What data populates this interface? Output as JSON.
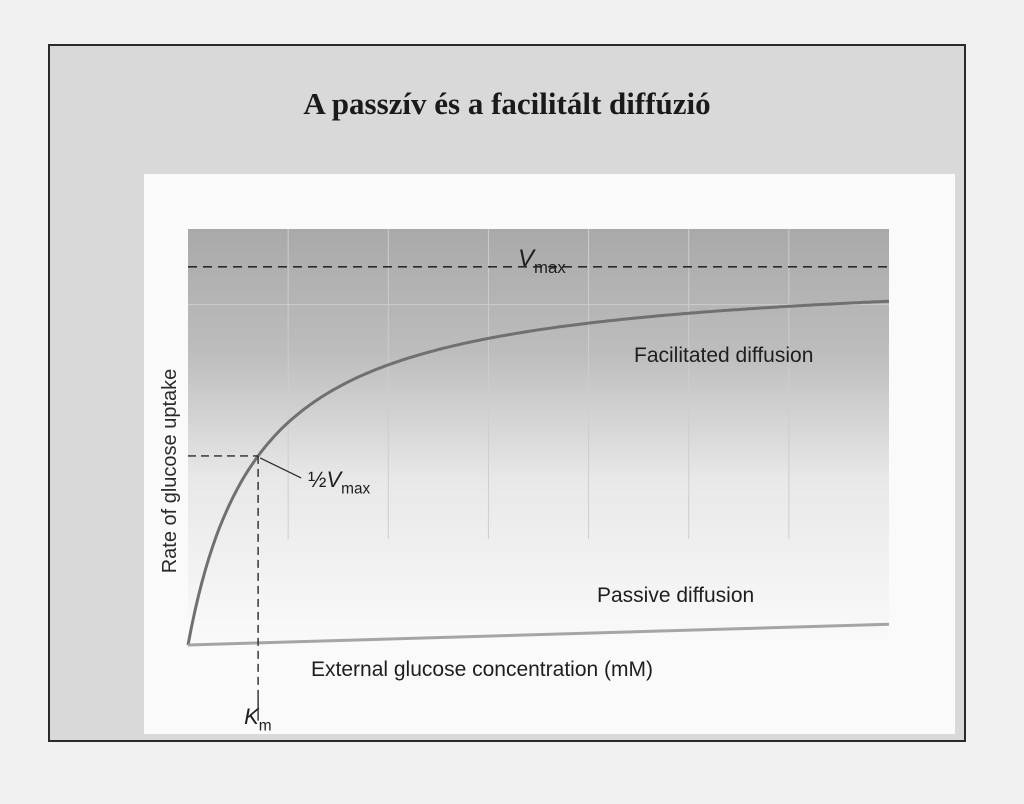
{
  "slide": {
    "title": "A passzív és a facilitált diffúzió"
  },
  "chart_data": {
    "type": "line",
    "xlabel": "External glucose concentration (mM)",
    "ylabel": "Rate of glucose uptake",
    "x_range": [
      0,
      10
    ],
    "y_range": [
      0,
      1.1
    ],
    "grid": true,
    "vmax_label": "Vmax",
    "half_vmax_label": "½Vmax",
    "km_label": "Km",
    "vmax": 1.0,
    "km": 1.0,
    "series": [
      {
        "name": "Facilitated diffusion",
        "x": [
          0,
          0.25,
          0.5,
          0.75,
          1,
          1.5,
          2,
          2.5,
          3,
          4,
          5,
          6,
          7,
          8,
          9,
          10
        ],
        "y": [
          0,
          0.2,
          0.333,
          0.429,
          0.5,
          0.6,
          0.667,
          0.714,
          0.75,
          0.8,
          0.833,
          0.857,
          0.875,
          0.889,
          0.9,
          0.909
        ]
      },
      {
        "name": "Passive diffusion",
        "x": [
          0,
          10
        ],
        "y": [
          0,
          0.055
        ]
      }
    ]
  }
}
